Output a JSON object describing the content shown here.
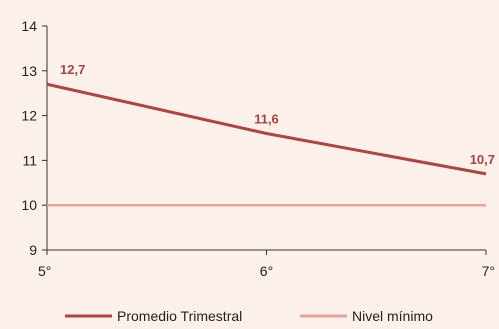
{
  "chart_data": {
    "type": "line",
    "title": "",
    "xlabel": "",
    "ylabel": "",
    "categories": [
      "5°",
      "6°",
      "7°"
    ],
    "ylim": [
      9,
      14
    ],
    "yticks": [
      9,
      10,
      11,
      12,
      13,
      14
    ],
    "grid": false,
    "legend_position": "bottom",
    "series": [
      {
        "name": "Promedio Trimestral",
        "values": [
          12.7,
          11.6,
          10.7
        ],
        "labels": [
          "12,7",
          "11,6",
          "10,7"
        ],
        "color": "#b0443f"
      },
      {
        "name": "Nivel mínimo",
        "values": [
          10,
          10,
          10
        ],
        "color": "#e3a29c"
      }
    ],
    "colors": {
      "background": "#fcf1ea",
      "axis": "#333333",
      "data_label": "#a8423c"
    }
  }
}
